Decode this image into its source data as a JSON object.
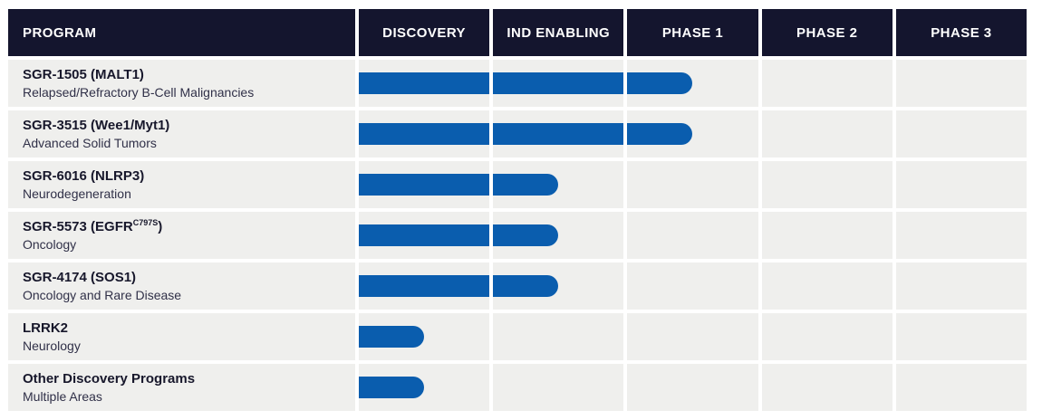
{
  "header": {
    "columns": [
      "PROGRAM",
      "DISCOVERY",
      "IND ENABLING",
      "PHASE 1",
      "PHASE 2",
      "PHASE 3"
    ]
  },
  "rows": [
    {
      "title_main": "SGR-1505 (MALT1)",
      "title_sup": "",
      "title_tail": "",
      "subtitle": "Relapsed/Refractory B-Cell Malignancies",
      "progress": [
        "full",
        "full",
        "half",
        "none",
        "none"
      ]
    },
    {
      "title_main": "SGR-3515 (Wee1/Myt1)",
      "title_sup": "",
      "title_tail": "",
      "subtitle": "Advanced Solid Tumors",
      "progress": [
        "full",
        "full",
        "half",
        "none",
        "none"
      ]
    },
    {
      "title_main": "SGR-6016 (NLRP3)",
      "title_sup": "",
      "title_tail": "",
      "subtitle": "Neurodegeneration",
      "progress": [
        "full",
        "half",
        "none",
        "none",
        "none"
      ]
    },
    {
      "title_main": "SGR-5573 (EGFR",
      "title_sup": "C797S",
      "title_tail": ")",
      "subtitle": "Oncology",
      "progress": [
        "full",
        "half",
        "none",
        "none",
        "none"
      ]
    },
    {
      "title_main": "SGR-4174 (SOS1)",
      "title_sup": "",
      "title_tail": "",
      "subtitle": "Oncology and Rare Disease",
      "progress": [
        "full",
        "half",
        "none",
        "none",
        "none"
      ]
    },
    {
      "title_main": "LRRK2",
      "title_sup": "",
      "title_tail": "",
      "subtitle": "Neurology",
      "progress": [
        "half",
        "none",
        "none",
        "none",
        "none"
      ]
    },
    {
      "title_main": "Other Discovery Programs",
      "title_sup": "",
      "title_tail": "",
      "subtitle": "Multiple Areas",
      "progress": [
        "half",
        "none",
        "none",
        "none",
        "none"
      ]
    }
  ],
  "colors": {
    "header_bg": "#14152e",
    "row_bg": "#efefed",
    "bar_blue": "#0a5dae",
    "header_text": "#ffffff",
    "title_text": "#17172b",
    "subtitle_text": "#303048"
  },
  "chart_data": {
    "type": "bar",
    "orientation": "horizontal",
    "categories": [
      "SGR-1505 (MALT1)",
      "SGR-3515 (Wee1/Myt1)",
      "SGR-6016 (NLRP3)",
      "SGR-5573 (EGFR C797S)",
      "SGR-4174 (SOS1)",
      "LRRK2",
      "Other Discovery Programs"
    ],
    "category_subtitles": [
      "Relapsed/Refractory B-Cell Malignancies",
      "Advanced Solid Tumors",
      "Neurodegeneration",
      "Oncology",
      "Oncology and Rare Disease",
      "Neurology",
      "Multiple Areas"
    ],
    "x_phases": [
      "DISCOVERY",
      "IND ENABLING",
      "PHASE 1",
      "PHASE 2",
      "PHASE 3"
    ],
    "values_stage_progress": [
      2.5,
      2.5,
      1.5,
      1.5,
      1.5,
      0.5,
      0.5
    ],
    "value_units": "phases completed (0-5); bar ends at midpoint of current stage",
    "xlim": [
      0,
      5
    ],
    "grid": false,
    "legend": false,
    "bar_color": "#0a5dae"
  }
}
